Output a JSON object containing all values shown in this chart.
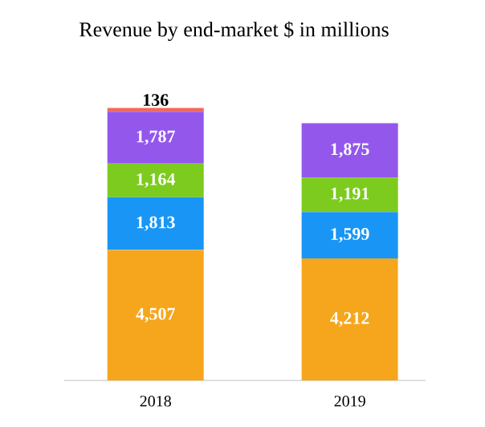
{
  "chart_data": {
    "type": "bar",
    "stacked": true,
    "title": "Revenue by end-market $ in millions",
    "categories": [
      "2018",
      "2019"
    ],
    "series": [
      {
        "color": "#f5a61c",
        "values": [
          4507,
          4212
        ],
        "value_labels": [
          "4,507",
          "4,212"
        ]
      },
      {
        "color": "#1996f5",
        "values": [
          1813,
          1599
        ],
        "value_labels": [
          "1,813",
          "1,599"
        ]
      },
      {
        "color": "#7ccb1e",
        "values": [
          1164,
          1191
        ],
        "value_labels": [
          "1,164",
          "1,191"
        ]
      },
      {
        "color": "#9357ec",
        "values": [
          1787,
          1875
        ],
        "value_labels": [
          "1,787",
          "1,875"
        ]
      },
      {
        "color": "#f06a5c",
        "values": [
          136,
          null
        ],
        "value_labels": [
          "136",
          null
        ]
      }
    ]
  }
}
